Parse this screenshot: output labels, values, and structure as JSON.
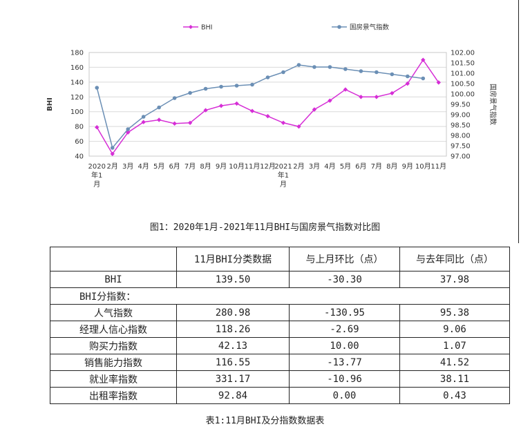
{
  "chart_data": {
    "type": "line",
    "title": "",
    "legend": [
      "BHI",
      "国房景气指数"
    ],
    "legend_position": "top",
    "x_categories": [
      "2020\n年1\n月",
      "2月",
      "3月",
      "4月",
      "5月",
      "6月",
      "7月",
      "8月",
      "9月",
      "10月",
      "11月",
      "12月",
      "2021\n年1\n月",
      "2月",
      "3月",
      "4月",
      "5月",
      "6月",
      "7月",
      "8月",
      "9月",
      "10月",
      "11月"
    ],
    "left_axis": {
      "label": "BHI",
      "min": 40,
      "max": 180,
      "ticks": [
        "40",
        "60",
        "80",
        "100",
        "120",
        "140",
        "160",
        "180"
      ]
    },
    "right_axis": {
      "label": "国房景气指数",
      "min": 97.0,
      "max": 102.0,
      "ticks": [
        "97.00",
        "97.50",
        "98.00",
        "98.50",
        "99.00",
        "99.50",
        "100.00",
        "100.50",
        "101.00",
        "101.50",
        "102.00"
      ]
    },
    "grid": "horizontal",
    "series": [
      {
        "name": "BHI",
        "axis": "left",
        "color": "#d62ed6",
        "values": [
          79,
          43,
          72,
          86,
          89,
          84,
          85,
          102,
          108,
          111,
          101,
          94,
          85,
          80,
          103,
          115,
          130,
          120,
          120,
          125,
          138,
          170,
          139.5
        ]
      },
      {
        "name": "国房景气指数",
        "axis": "right",
        "color": "#6b8fb5",
        "values": [
          100.3,
          97.4,
          98.3,
          98.9,
          99.35,
          99.8,
          100.05,
          100.25,
          100.35,
          100.4,
          100.45,
          100.8,
          101.05,
          101.4,
          101.3,
          101.3,
          101.2,
          101.1,
          101.05,
          100.95,
          100.85,
          100.75,
          null
        ]
      }
    ]
  },
  "figure_caption": "图1：2020年1月-2021年11月BHI与国房景气指数对比图",
  "table": {
    "headers": [
      "",
      "11月BHI分类数据",
      "与上月环比（点）",
      "与去年同比（点）"
    ],
    "rows": [
      {
        "label": "BHI",
        "value": "139.50",
        "mom": "-30.30",
        "yoy": "37.98"
      },
      {
        "section": "BHI分指数："
      },
      {
        "label": "人气指数",
        "value": "280.98",
        "mom": "-130.95",
        "yoy": "95.38"
      },
      {
        "label": "经理人信心指数",
        "value": "118.26",
        "mom": "-2.69",
        "yoy": "9.06"
      },
      {
        "label": "购买力指数",
        "value": "42.13",
        "mom": "10.00",
        "yoy": "1.07"
      },
      {
        "label": "销售能力指数",
        "value": "116.55",
        "mom": "-13.77",
        "yoy": "41.52"
      },
      {
        "label": "就业率指数",
        "value": "331.17",
        "mom": "-10.96",
        "yoy": "38.11"
      },
      {
        "label": "出租率指数",
        "value": "92.84",
        "mom": "0.00",
        "yoy": "0.43"
      }
    ]
  },
  "table_caption": "表1:11月BHI及分指数数据表"
}
